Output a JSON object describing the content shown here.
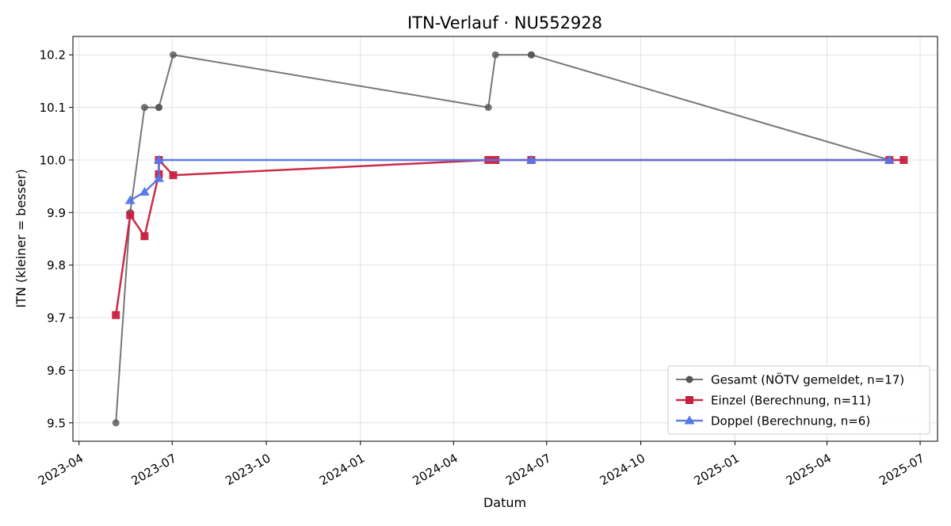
{
  "chart_data": {
    "type": "line",
    "title": "ITN-Verlauf · NU552928",
    "xlabel": "Datum",
    "ylabel": "ITN  (kleiner = besser)",
    "x_type": "date",
    "xlim": [
      "2023-03-26",
      "2025-07-18"
    ],
    "ylim": [
      9.465,
      10.235
    ],
    "grid": true,
    "legend_position": "lower-right",
    "x_ticks": [
      "2023-04",
      "2023-07",
      "2023-10",
      "2024-01",
      "2024-04",
      "2024-07",
      "2024-10",
      "2025-01",
      "2025-04",
      "2025-07"
    ],
    "y_ticks": [
      "9.5",
      "9.6",
      "9.7",
      "9.8",
      "9.9",
      "10.0",
      "10.1",
      "10.2"
    ],
    "series": [
      {
        "name": "Gesamt (NÖTV gemeldet, n=17)",
        "color": "#555555",
        "marker": "circle",
        "points": [
          {
            "x": "2023-05-07",
            "y": 9.5
          },
          {
            "x": "2023-05-21",
            "y": 9.9
          },
          {
            "x": "2023-06-04",
            "y": 10.1
          },
          {
            "x": "2023-06-18",
            "y": 10.1
          },
          {
            "x": "2023-06-18",
            "y": 10.1
          },
          {
            "x": "2023-07-02",
            "y": 10.2
          },
          {
            "x": "2024-05-05",
            "y": 10.1
          },
          {
            "x": "2024-05-12",
            "y": 10.2
          },
          {
            "x": "2024-06-16",
            "y": 10.2
          },
          {
            "x": "2024-06-16",
            "y": 10.2
          },
          {
            "x": "2025-06-01",
            "y": 10.0
          }
        ]
      },
      {
        "name": "Einzel (Berechnung, n=11)",
        "color": "#c8203f",
        "marker": "square",
        "points": [
          {
            "x": "2023-05-07",
            "y": 9.705
          },
          {
            "x": "2023-05-21",
            "y": 9.895
          },
          {
            "x": "2023-06-04",
            "y": 9.855
          },
          {
            "x": "2023-06-18",
            "y": 9.973
          },
          {
            "x": "2023-06-18",
            "y": 10.0
          },
          {
            "x": "2023-07-02",
            "y": 9.971
          },
          {
            "x": "2024-05-05",
            "y": 10.0
          },
          {
            "x": "2024-05-12",
            "y": 10.0
          },
          {
            "x": "2024-06-16",
            "y": 10.0
          },
          {
            "x": "2025-06-01",
            "y": 10.0
          },
          {
            "x": "2025-06-15",
            "y": 10.0
          }
        ]
      },
      {
        "name": "Doppel (Berechnung, n=6)",
        "color": "#5577e8",
        "marker": "triangle",
        "points": [
          {
            "x": "2023-05-21",
            "y": 9.923
          },
          {
            "x": "2023-06-04",
            "y": 9.939
          },
          {
            "x": "2023-06-18",
            "y": 9.965
          },
          {
            "x": "2023-06-18",
            "y": 10.0
          },
          {
            "x": "2024-06-16",
            "y": 10.0
          },
          {
            "x": "2025-06-01",
            "y": 10.0
          }
        ]
      }
    ]
  }
}
